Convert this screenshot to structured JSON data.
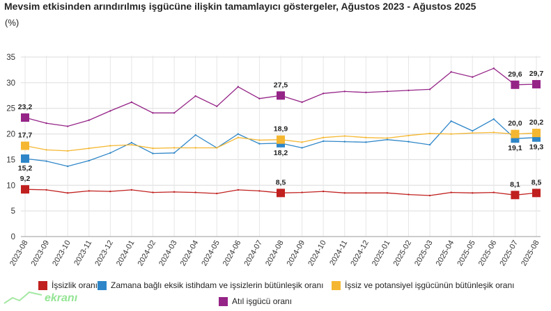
{
  "title": "Mevsim etkisinden arındırılmış işgücüne ilişkin tamamlayıcı göstergeler, Ağustos 2023 - Ağustos 2025",
  "unit": "(%)",
  "watermark": {
    "text": "ekranı"
  },
  "chart_data": {
    "type": "line",
    "ylim": [
      0,
      35
    ],
    "yticks": [
      0,
      5,
      10,
      15,
      20,
      25,
      30,
      35
    ],
    "grid": true,
    "legend_position": "bottom",
    "x": [
      "2023-08",
      "2023-09",
      "2023-10",
      "2023-11",
      "2023-12",
      "2024-01",
      "2024-02",
      "2024-03",
      "2024-04",
      "2024-05",
      "2024-06",
      "2024-07",
      "2024-08",
      "2024-09",
      "2024-10",
      "2024-11",
      "2024-12",
      "2025-01",
      "2025-02",
      "2025-03",
      "2025-04",
      "2025-05",
      "2025-06",
      "2025-07",
      "2025-08"
    ],
    "series": [
      {
        "name": "İşsizlik oranı",
        "color": "#c0201e",
        "values": [
          9.2,
          9.1,
          8.5,
          8.9,
          8.8,
          9.1,
          8.6,
          8.7,
          8.6,
          8.4,
          9.1,
          8.9,
          8.5,
          8.6,
          8.8,
          8.5,
          8.5,
          8.5,
          8.2,
          8.0,
          8.6,
          8.5,
          8.6,
          8.1,
          8.5
        ],
        "labels": [
          [
            "0",
            "9,2"
          ],
          [
            "12",
            "8,5"
          ],
          [
            "23",
            "8,1"
          ],
          [
            "24",
            "8,5"
          ]
        ]
      },
      {
        "name": "Zamana bağlı eksik istihdam ve işsizlerin bütünleşik oranı",
        "color": "#2e86c8",
        "values": [
          15.2,
          14.7,
          13.7,
          14.8,
          16.3,
          18.3,
          16.2,
          16.3,
          19.8,
          17.3,
          20.0,
          18.1,
          18.2,
          17.3,
          18.6,
          18.5,
          18.4,
          18.9,
          18.5,
          17.9,
          22.5,
          20.6,
          22.9,
          19.1,
          19.3
        ],
        "labels": [
          [
            "0",
            "15,2"
          ],
          [
            "12",
            "18,2"
          ],
          [
            "23",
            "19,1"
          ],
          [
            "24",
            "19,3"
          ]
        ]
      },
      {
        "name": "İşsiz ve potansiyel işgücünün bütünleşik oranı",
        "color": "#f5b731",
        "values": [
          17.7,
          16.9,
          16.7,
          17.2,
          17.7,
          17.9,
          17.2,
          17.3,
          17.3,
          17.3,
          19.3,
          18.8,
          18.9,
          18.4,
          19.3,
          19.6,
          19.3,
          19.2,
          19.7,
          20.1,
          20.0,
          20.2,
          20.3,
          20.0,
          20.2
        ],
        "labels": [
          [
            "0",
            "17,7"
          ],
          [
            "12",
            "18,9"
          ],
          [
            "23",
            "20,0"
          ],
          [
            "24",
            "20,2"
          ]
        ]
      },
      {
        "name": "Atıl işgücü oranı",
        "color": "#952487",
        "values": [
          23.2,
          22.1,
          21.5,
          22.7,
          24.5,
          26.2,
          24.1,
          24.1,
          27.4,
          25.4,
          29.2,
          26.9,
          27.5,
          26.2,
          27.9,
          28.3,
          28.1,
          28.3,
          28.5,
          28.7,
          32.1,
          31.1,
          32.8,
          29.6,
          29.7
        ],
        "labels": [
          [
            "0",
            "23,2"
          ],
          [
            "12",
            "27,5"
          ],
          [
            "23",
            "29,6"
          ],
          [
            "24",
            "29,7"
          ]
        ]
      }
    ]
  }
}
